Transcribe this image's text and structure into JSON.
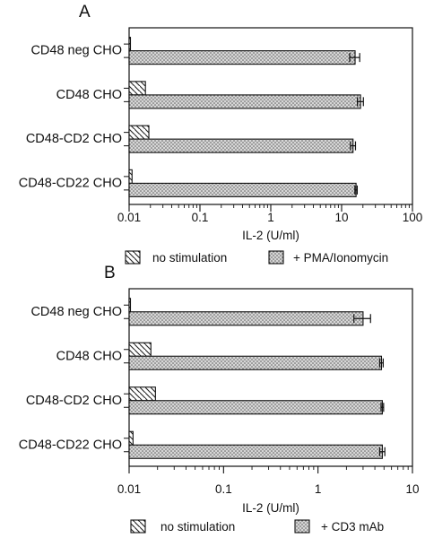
{
  "chart_data": [
    {
      "type": "bar",
      "orientation": "horizontal",
      "panel_label": "A",
      "categories": [
        "CD48 neg CHO",
        "CD48 CHO",
        "CD48-CD2 CHO",
        "CD48-CD22 CHO"
      ],
      "xscale": "log",
      "xlim": [
        0.01,
        100
      ],
      "xticks": [
        "0.01",
        "0.1",
        "1",
        "10",
        "100"
      ],
      "xlabel": "IL-2 (U/ml)",
      "series": [
        {
          "name": "no stimulation",
          "values": [
            0.01,
            0.017,
            0.019,
            0.011
          ],
          "errors": [
            null,
            null,
            null,
            null
          ],
          "pattern": "diagonal-hatch"
        },
        {
          "name": "+ PMA/Ionomycin",
          "values": [
            15.5,
            18.5,
            14.5,
            16.0
          ],
          "errors": [
            2.5,
            1.8,
            1.2,
            0.6
          ],
          "pattern": "stipple"
        }
      ],
      "legend_position": "below"
    },
    {
      "type": "bar",
      "orientation": "horizontal",
      "panel_label": "B",
      "categories": [
        "CD48 neg CHO",
        "CD48 CHO",
        "CD48-CD2 CHO",
        "CD48-CD22 CHO"
      ],
      "xscale": "log",
      "xlim": [
        0.01,
        10
      ],
      "xticks": [
        "0.01",
        "0.1",
        "1",
        "10"
      ],
      "xlabel": "IL-2 (U/ml)",
      "series": [
        {
          "name": "no stimulation",
          "values": [
            0.01,
            0.017,
            0.019,
            0.011
          ],
          "errors": [
            null,
            null,
            null,
            null
          ],
          "pattern": "diagonal-hatch"
        },
        {
          "name": "+ CD3 mAb",
          "values": [
            3.0,
            4.7,
            4.8,
            4.8
          ],
          "errors": [
            0.6,
            0.2,
            0.15,
            0.3
          ],
          "pattern": "stipple"
        }
      ],
      "legend_position": "below"
    }
  ],
  "colors": {
    "stroke": "#111111",
    "bar_fill": "#c8c8c8",
    "hatch": "#222222",
    "background": "#ffffff"
  }
}
